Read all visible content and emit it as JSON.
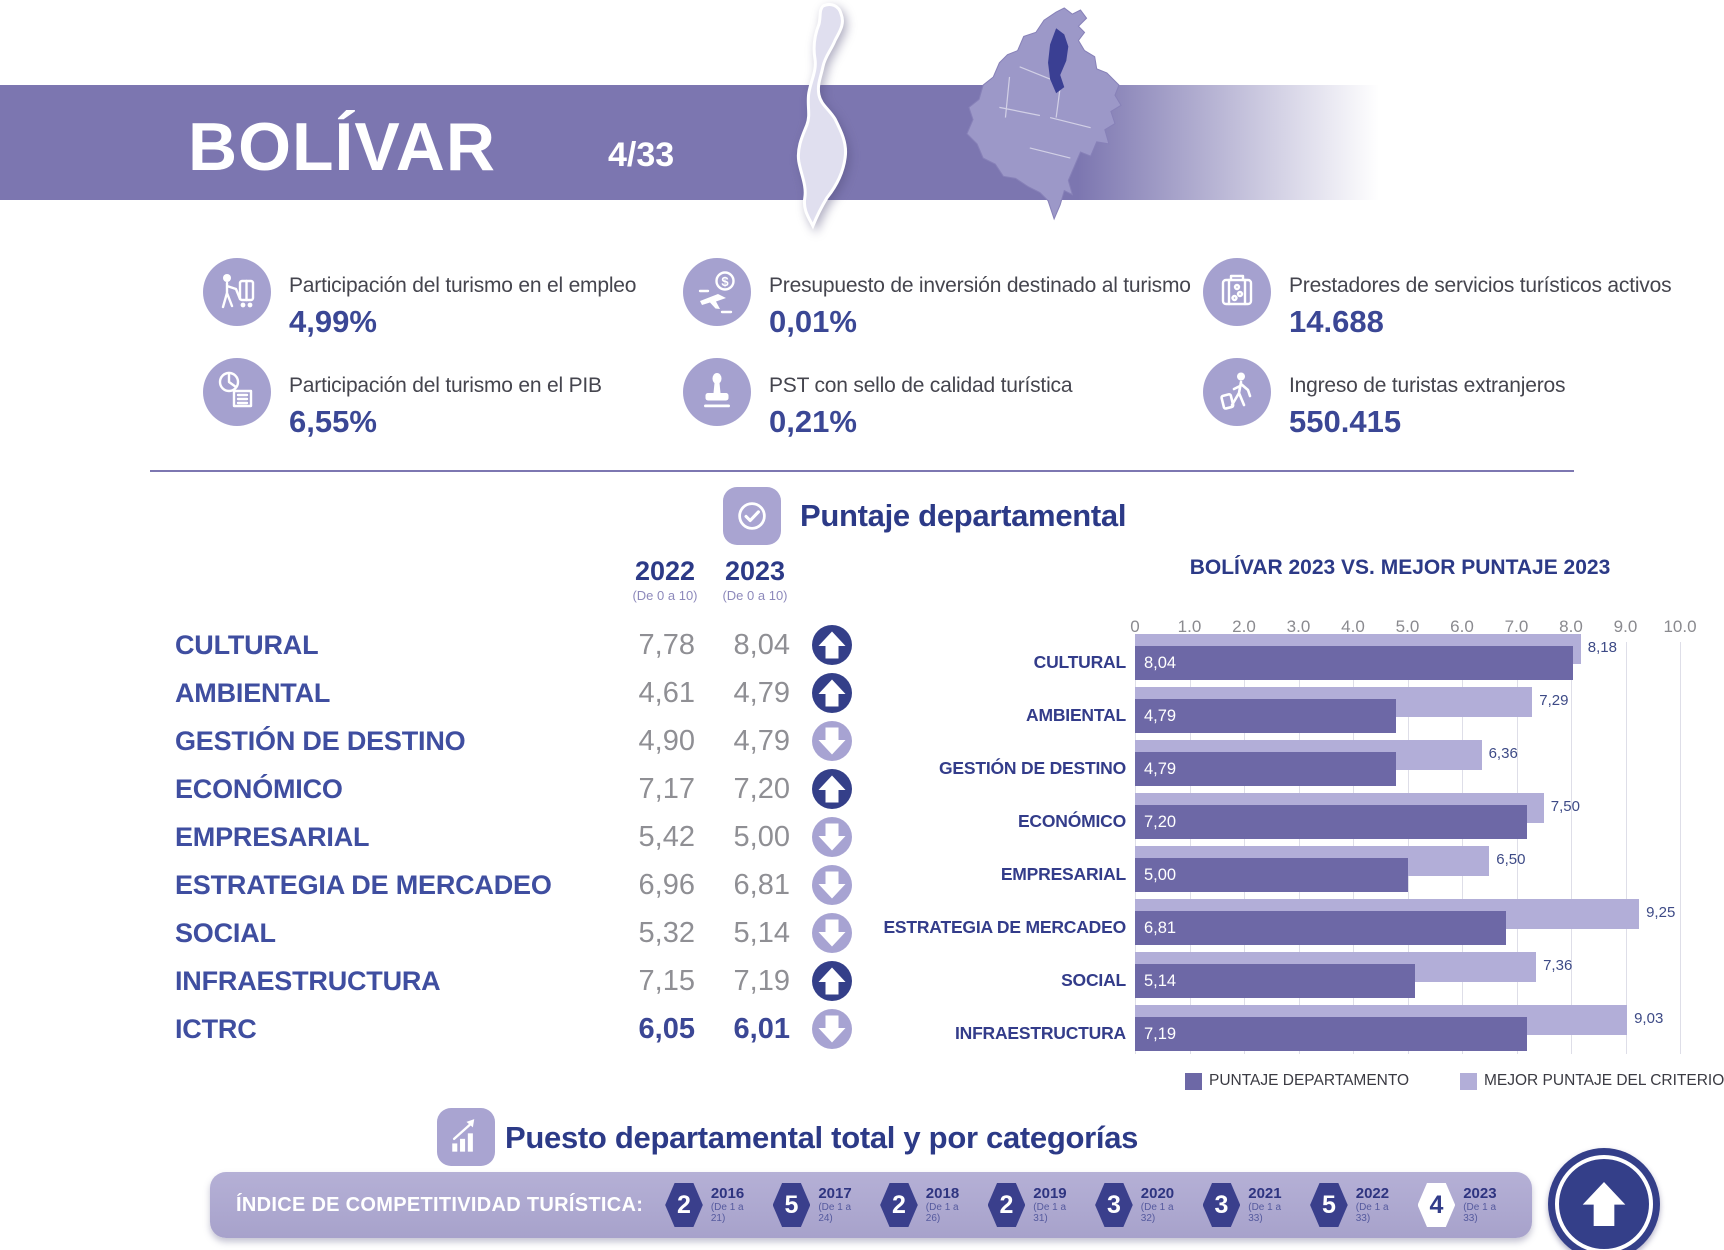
{
  "header": {
    "title": "BOLÍVAR",
    "page_indicator": "4/33"
  },
  "stats": [
    {
      "icon": "bellhop-cart-icon",
      "label": "Participación del turismo en el empleo",
      "value": "4,99%"
    },
    {
      "icon": "pie-building-icon",
      "label": "Participación del turismo en el PIB",
      "value": "6,55%"
    },
    {
      "icon": "plane-dollar-icon",
      "label": "Presupuesto de inversión destinado al turismo",
      "value": "0,01%"
    },
    {
      "icon": "stamp-icon",
      "label": "PST con sello de calidad turística",
      "value": "0,21%"
    },
    {
      "icon": "suitcase-icon",
      "label": "Prestadores de servicios turísticos activos",
      "value": "14.688"
    },
    {
      "icon": "traveler-icon",
      "label": "Ingreso de turistas extranjeros",
      "value": "550.415"
    }
  ],
  "puntaje": {
    "title": "Puntaje departamental",
    "columns": [
      {
        "year": "2022",
        "scale": "(De 0 a 10)"
      },
      {
        "year": "2023",
        "scale": "(De 0 a 10)"
      }
    ],
    "rows": [
      {
        "label": "CULTURAL",
        "v2022": "7,78",
        "v2023": "8,04",
        "trend": "up"
      },
      {
        "label": "AMBIENTAL",
        "v2022": "4,61",
        "v2023": "4,79",
        "trend": "up"
      },
      {
        "label": "GESTIÓN DE DESTINO",
        "v2022": "4,90",
        "v2023": "4,79",
        "trend": "down"
      },
      {
        "label": "ECONÓMICO",
        "v2022": "7,17",
        "v2023": "7,20",
        "trend": "up"
      },
      {
        "label": "EMPRESARIAL",
        "v2022": "5,42",
        "v2023": "5,00",
        "trend": "down"
      },
      {
        "label": "ESTRATEGIA DE MERCADEO",
        "v2022": "6,96",
        "v2023": "6,81",
        "trend": "down"
      },
      {
        "label": "SOCIAL",
        "v2022": "5,32",
        "v2023": "5,14",
        "trend": "down"
      },
      {
        "label": "INFRAESTRUCTURA",
        "v2022": "7,15",
        "v2023": "7,19",
        "trend": "up"
      },
      {
        "label": "ICTRC",
        "v2022": "6,05",
        "v2023": "6,01",
        "trend": "down",
        "emphasis": true
      }
    ]
  },
  "chart_data": {
    "type": "bar",
    "orientation": "horizontal",
    "title": "BOLÍVAR 2023 VS. MEJOR PUNTAJE 2023",
    "categories": [
      "CULTURAL",
      "AMBIENTAL",
      "GESTIÓN DE DESTINO",
      "ECONÓMICO",
      "EMPRESARIAL",
      "ESTRATEGIA DE MERCADEO",
      "SOCIAL",
      "INFRAESTRUCTURA"
    ],
    "series": [
      {
        "name": "PUNTAJE DEPARTAMENTO",
        "color": "#6d68a6",
        "values": [
          8.04,
          4.79,
          4.79,
          7.2,
          5.0,
          6.81,
          5.14,
          7.19
        ],
        "labels": [
          "8,04",
          "4,79",
          "4,79",
          "7,20",
          "5,00",
          "6,81",
          "5,14",
          "7,19"
        ]
      },
      {
        "name": "MEJOR PUNTAJE DEL CRITERIO",
        "color": "#b2aed8",
        "values": [
          8.18,
          7.29,
          6.36,
          7.5,
          6.5,
          9.25,
          7.36,
          9.03
        ],
        "labels": [
          "8,18",
          "7,29",
          "6,36",
          "7,50",
          "6,50",
          "9,25",
          "7,36",
          "9,03"
        ]
      }
    ],
    "xlim": [
      0,
      10
    ],
    "ticks": [
      "0",
      "1.0",
      "2.0",
      "3.0",
      "4.0",
      "5.0",
      "6.0",
      "7.0",
      "8.0",
      "9.0",
      "10.0"
    ],
    "grid": true,
    "legend_position": "bottom"
  },
  "puesto": {
    "title": "Puesto departamental total y por categorías"
  },
  "indice": {
    "label": "ÍNDICE DE COMPETITIVIDAD TURÍSTICA:",
    "badges": [
      {
        "rank": "2",
        "year": "2016",
        "range": "(De 1 a 21)"
      },
      {
        "rank": "5",
        "year": "2017",
        "range": "(De 1 a 24)"
      },
      {
        "rank": "2",
        "year": "2018",
        "range": "(De 1 a 26)"
      },
      {
        "rank": "2",
        "year": "2019",
        "range": "(De 1 a 31)"
      },
      {
        "rank": "3",
        "year": "2020",
        "range": "(De 1 a 32)"
      },
      {
        "rank": "3",
        "year": "2021",
        "range": "(De 1 a 33)"
      },
      {
        "rank": "5",
        "year": "2022",
        "range": "(De 1 a 33)"
      },
      {
        "rank": "4",
        "year": "2023",
        "range": "(De 1 a 33)",
        "highlight": true
      }
    ],
    "trend": "up"
  },
  "colors": {
    "banner": "#7c76b0",
    "icon_bg": "#a5a1cf",
    "navy": "#2c3a87",
    "value_navy": "#3b4795",
    "gray_value": "#8f8f94",
    "bar_dark": "#6d68a6",
    "bar_light": "#b2aed8",
    "up_arrow": "#343f89",
    "down_arrow": "#a7a3d2",
    "hexagon": "#3a3f8c"
  }
}
